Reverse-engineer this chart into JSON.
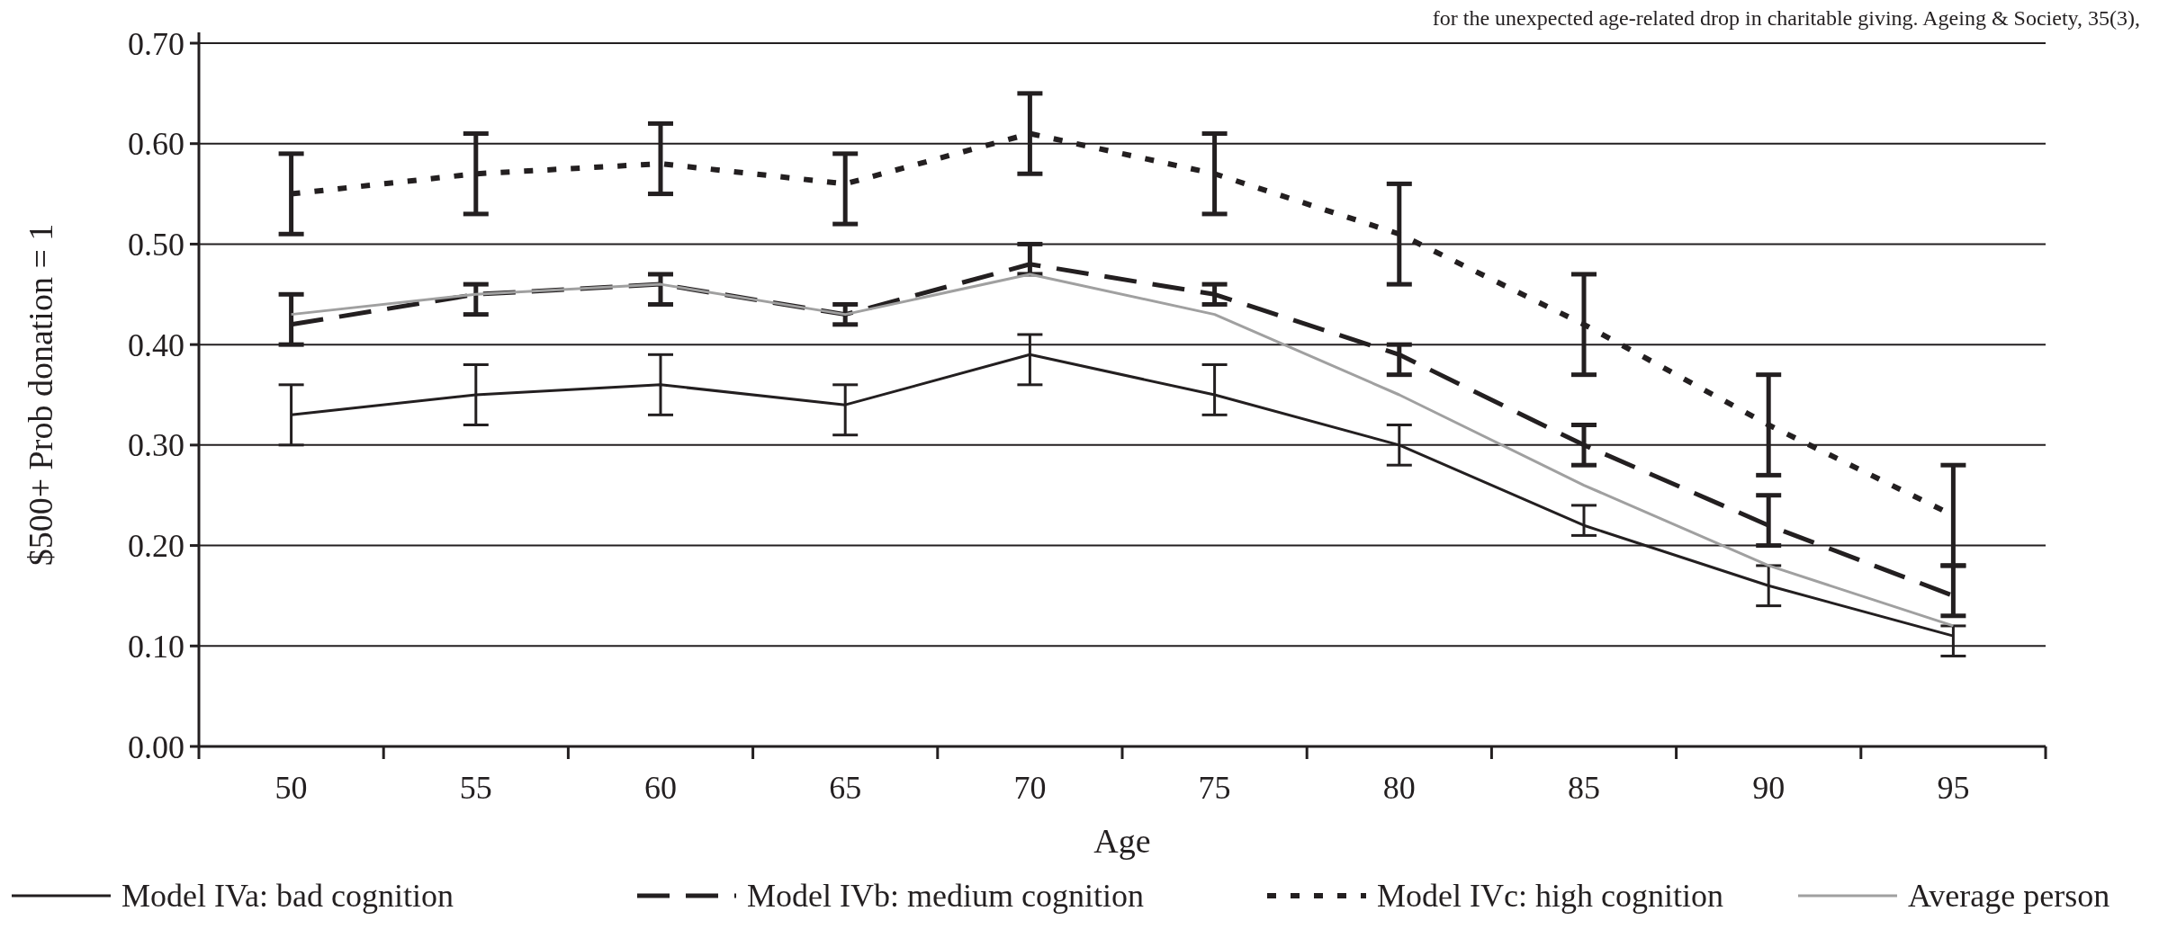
{
  "chart_data": {
    "type": "line",
    "xlabel": "Age",
    "ylabel": "$500+  Prob donation = 1",
    "annotations": [
      "for the unexpected age-related drop in charitable giving. Ageing & Society, 35(3),"
    ],
    "categories": [
      "50",
      "55",
      "60",
      "65",
      "70",
      "75",
      "80",
      "85",
      "90",
      "95"
    ],
    "series": [
      {
        "name": "Model IVa: bad cognition",
        "color": "#231f20",
        "line_style": "solid",
        "values": [
          0.33,
          0.35,
          0.36,
          0.34,
          0.39,
          0.35,
          0.3,
          0.22,
          0.16,
          0.11
        ],
        "errors": [
          [
            0.3,
            0.36
          ],
          [
            0.32,
            0.38
          ],
          [
            0.33,
            0.39
          ],
          [
            0.31,
            0.36
          ],
          [
            0.36,
            0.41
          ],
          [
            0.33,
            0.38
          ],
          [
            0.28,
            0.32
          ],
          [
            0.21,
            0.24
          ],
          [
            0.14,
            0.18
          ],
          [
            0.09,
            0.12
          ]
        ]
      },
      {
        "name": "Model IVb: medium cognition",
        "color": "#231f20",
        "line_style": "dashed",
        "values": [
          0.42,
          0.45,
          0.46,
          0.43,
          0.48,
          0.45,
          0.39,
          0.3,
          0.22,
          0.15
        ],
        "errors": [
          [
            0.4,
            0.45
          ],
          [
            0.43,
            0.46
          ],
          [
            0.44,
            0.47
          ],
          [
            0.42,
            0.44
          ],
          [
            0.47,
            0.5
          ],
          [
            0.44,
            0.46
          ],
          [
            0.37,
            0.4
          ],
          [
            0.28,
            0.32
          ],
          [
            0.2,
            0.25
          ],
          [
            0.13,
            0.18
          ]
        ]
      },
      {
        "name": "Model IVc: high cognition",
        "color": "#231f20",
        "line_style": "dotted",
        "values": [
          0.55,
          0.57,
          0.58,
          0.56,
          0.61,
          0.57,
          0.51,
          0.42,
          0.32,
          0.23
        ],
        "errors": [
          [
            0.51,
            0.59
          ],
          [
            0.53,
            0.61
          ],
          [
            0.55,
            0.62
          ],
          [
            0.52,
            0.59
          ],
          [
            0.57,
            0.65
          ],
          [
            0.53,
            0.61
          ],
          [
            0.46,
            0.56
          ],
          [
            0.37,
            0.47
          ],
          [
            0.27,
            0.37
          ],
          [
            0.18,
            0.28
          ]
        ]
      },
      {
        "name": "Average person",
        "color": "#a0a0a0",
        "line_style": "solid",
        "values": [
          0.43,
          0.45,
          0.46,
          0.43,
          0.47,
          0.43,
          0.35,
          0.26,
          0.18,
          0.12
        ]
      }
    ],
    "ylim": [
      0,
      0.7
    ],
    "yticks": [
      {
        "value": 0,
        "label": "0.00"
      },
      {
        "value": 0.1,
        "label": "0.10"
      },
      {
        "value": 0.2,
        "label": "0.20"
      },
      {
        "value": 0.3,
        "label": "0.30"
      },
      {
        "value": 0.4,
        "label": "0.40"
      },
      {
        "value": 0.5,
        "label": "0.50"
      },
      {
        "value": 0.6,
        "label": "0.60"
      },
      {
        "value": 0.7,
        "label": "0.70"
      }
    ],
    "grid": "y",
    "legend": "bottom",
    "marker": "none"
  }
}
